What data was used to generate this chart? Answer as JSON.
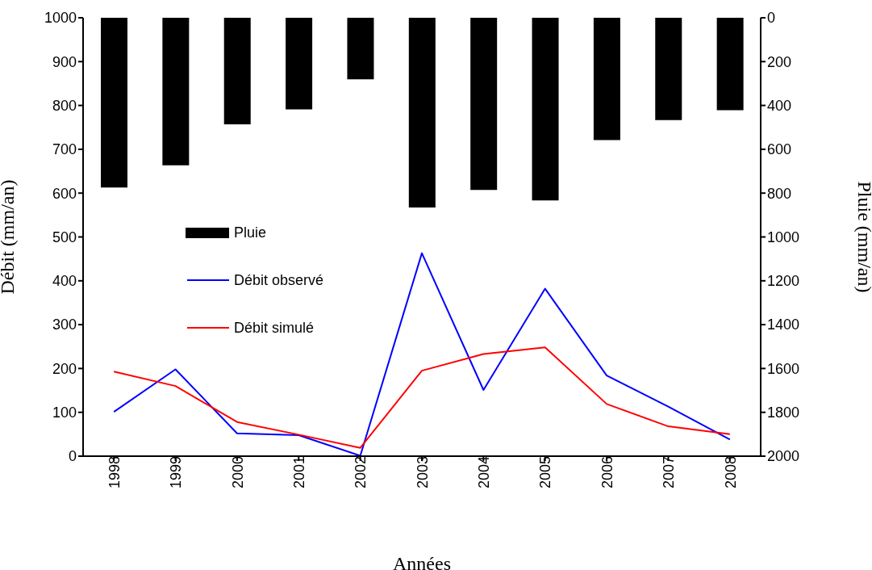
{
  "chart_data": {
    "type": "line",
    "xlabel": "Années",
    "ylabel": "Débit (mm/an)",
    "y2label": "Pluie (mm/an)",
    "categories": [
      "1998",
      "1999",
      "2000",
      "2001",
      "2002",
      "2003",
      "2004",
      "2005",
      "2006",
      "2007",
      "2008"
    ],
    "series": [
      {
        "name": "Pluie",
        "type": "bar",
        "axis": "y2",
        "color": "#000000",
        "values": [
          774,
          673,
          486,
          418,
          281,
          866,
          785,
          833,
          558,
          467,
          422
        ]
      },
      {
        "name": "Débit observé",
        "color": "#0000ff",
        "values": [
          101,
          198,
          52,
          48,
          1,
          463,
          151,
          382,
          184,
          113,
          38
        ]
      },
      {
        "name": "Débit simulé",
        "color": "#ff0000",
        "values": [
          193,
          160,
          78,
          49,
          19,
          195,
          233,
          248,
          119,
          68,
          50
        ]
      }
    ],
    "ylim": [
      0,
      1000
    ],
    "yticks": [
      0,
      100,
      200,
      300,
      400,
      500,
      600,
      700,
      800,
      900,
      1000
    ],
    "y2lim": [
      2000,
      0
    ],
    "y2ticks": [
      0,
      200,
      400,
      600,
      800,
      1000,
      1200,
      1400,
      1600,
      1800,
      2000
    ],
    "legend": "left",
    "grid": false,
    "marker": "none",
    "line_style": "solid"
  }
}
